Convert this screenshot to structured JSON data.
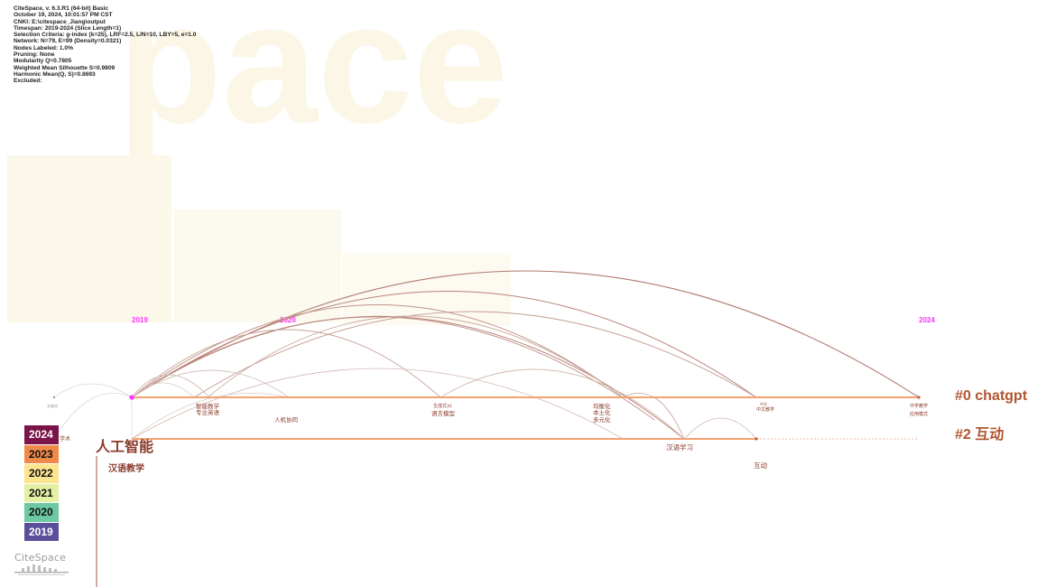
{
  "watermark": "pace",
  "info_lines": [
    "CiteSpace, v. 6.3.R1 (64-bit) Basic",
    "October 19, 2024, 10:01:57 PM CST",
    "CNKI: E:\\citespace_Jiang\\output",
    "Timespan: 2019-2024 (Slice Length=1)",
    "Selection Criteria: g-index (k=25), LRF=2.5, L/N=10, LBY=5, e=1.0",
    "Network: N=79, E=99 (Density=0.0321)",
    "Nodes Labeled: 1.0%",
    "Pruning: None",
    "Modularity Q=0.7805",
    "Weighted Mean Silhouette S=0.9809",
    "Harmonic Mean(Q, S)=0.8693",
    "Excluded:"
  ],
  "years": [
    "2019",
    "2020",
    "2024"
  ],
  "clusters": [
    {
      "id": "#0",
      "label": "#0 chatgpt"
    },
    {
      "id": "#2",
      "label": "#2 互动"
    }
  ],
  "keywords": {
    "rengong": "人工智能",
    "hanyu_jiaoxue": "汉语教学",
    "zhineng_jiaoxue": "智能教学",
    "zhuanye_yingyu": "专业英语",
    "renji_xietong": "人机协同",
    "ai_shengcheng": "生成式AI",
    "yuyan_moxing": "语言模型",
    "junhenghua": "均衡化",
    "bentuhua": "本土化",
    "duoyuanhua": "多元化",
    "zhongwen": "中文",
    "zhongwen2": "中文教学",
    "zhongxue_jiaoxue": "中学教学",
    "yingyong_moshi": "应用模式",
    "hanyu_xuexi": "汉语学习",
    "hudong": "互动",
    "left_small": "关键词",
    "left_small2": "学术"
  },
  "legend": [
    {
      "year": "2024",
      "color": "#7b1448",
      "text_color": "#ffffff"
    },
    {
      "year": "2023",
      "color": "#f08a4b",
      "text_color": "#111111"
    },
    {
      "year": "2022",
      "color": "#fbe48e",
      "text_color": "#111111"
    },
    {
      "year": "2021",
      "color": "#e3f1a4",
      "text_color": "#111111"
    },
    {
      "year": "2020",
      "color": "#6cc9a3",
      "text_color": "#111111"
    },
    {
      "year": "2019",
      "color": "#5b4f9c",
      "text_color": "#ffffff"
    }
  ],
  "logo": "CiteSpace",
  "colors": {
    "cluster_line": "#f0a070",
    "cluster_label": "#b1562f",
    "year_label": "#ff33ff",
    "arc_brown": "#b7867a",
    "arc_light": "#d8c8c0",
    "keyword": "#8b3a2a"
  }
}
